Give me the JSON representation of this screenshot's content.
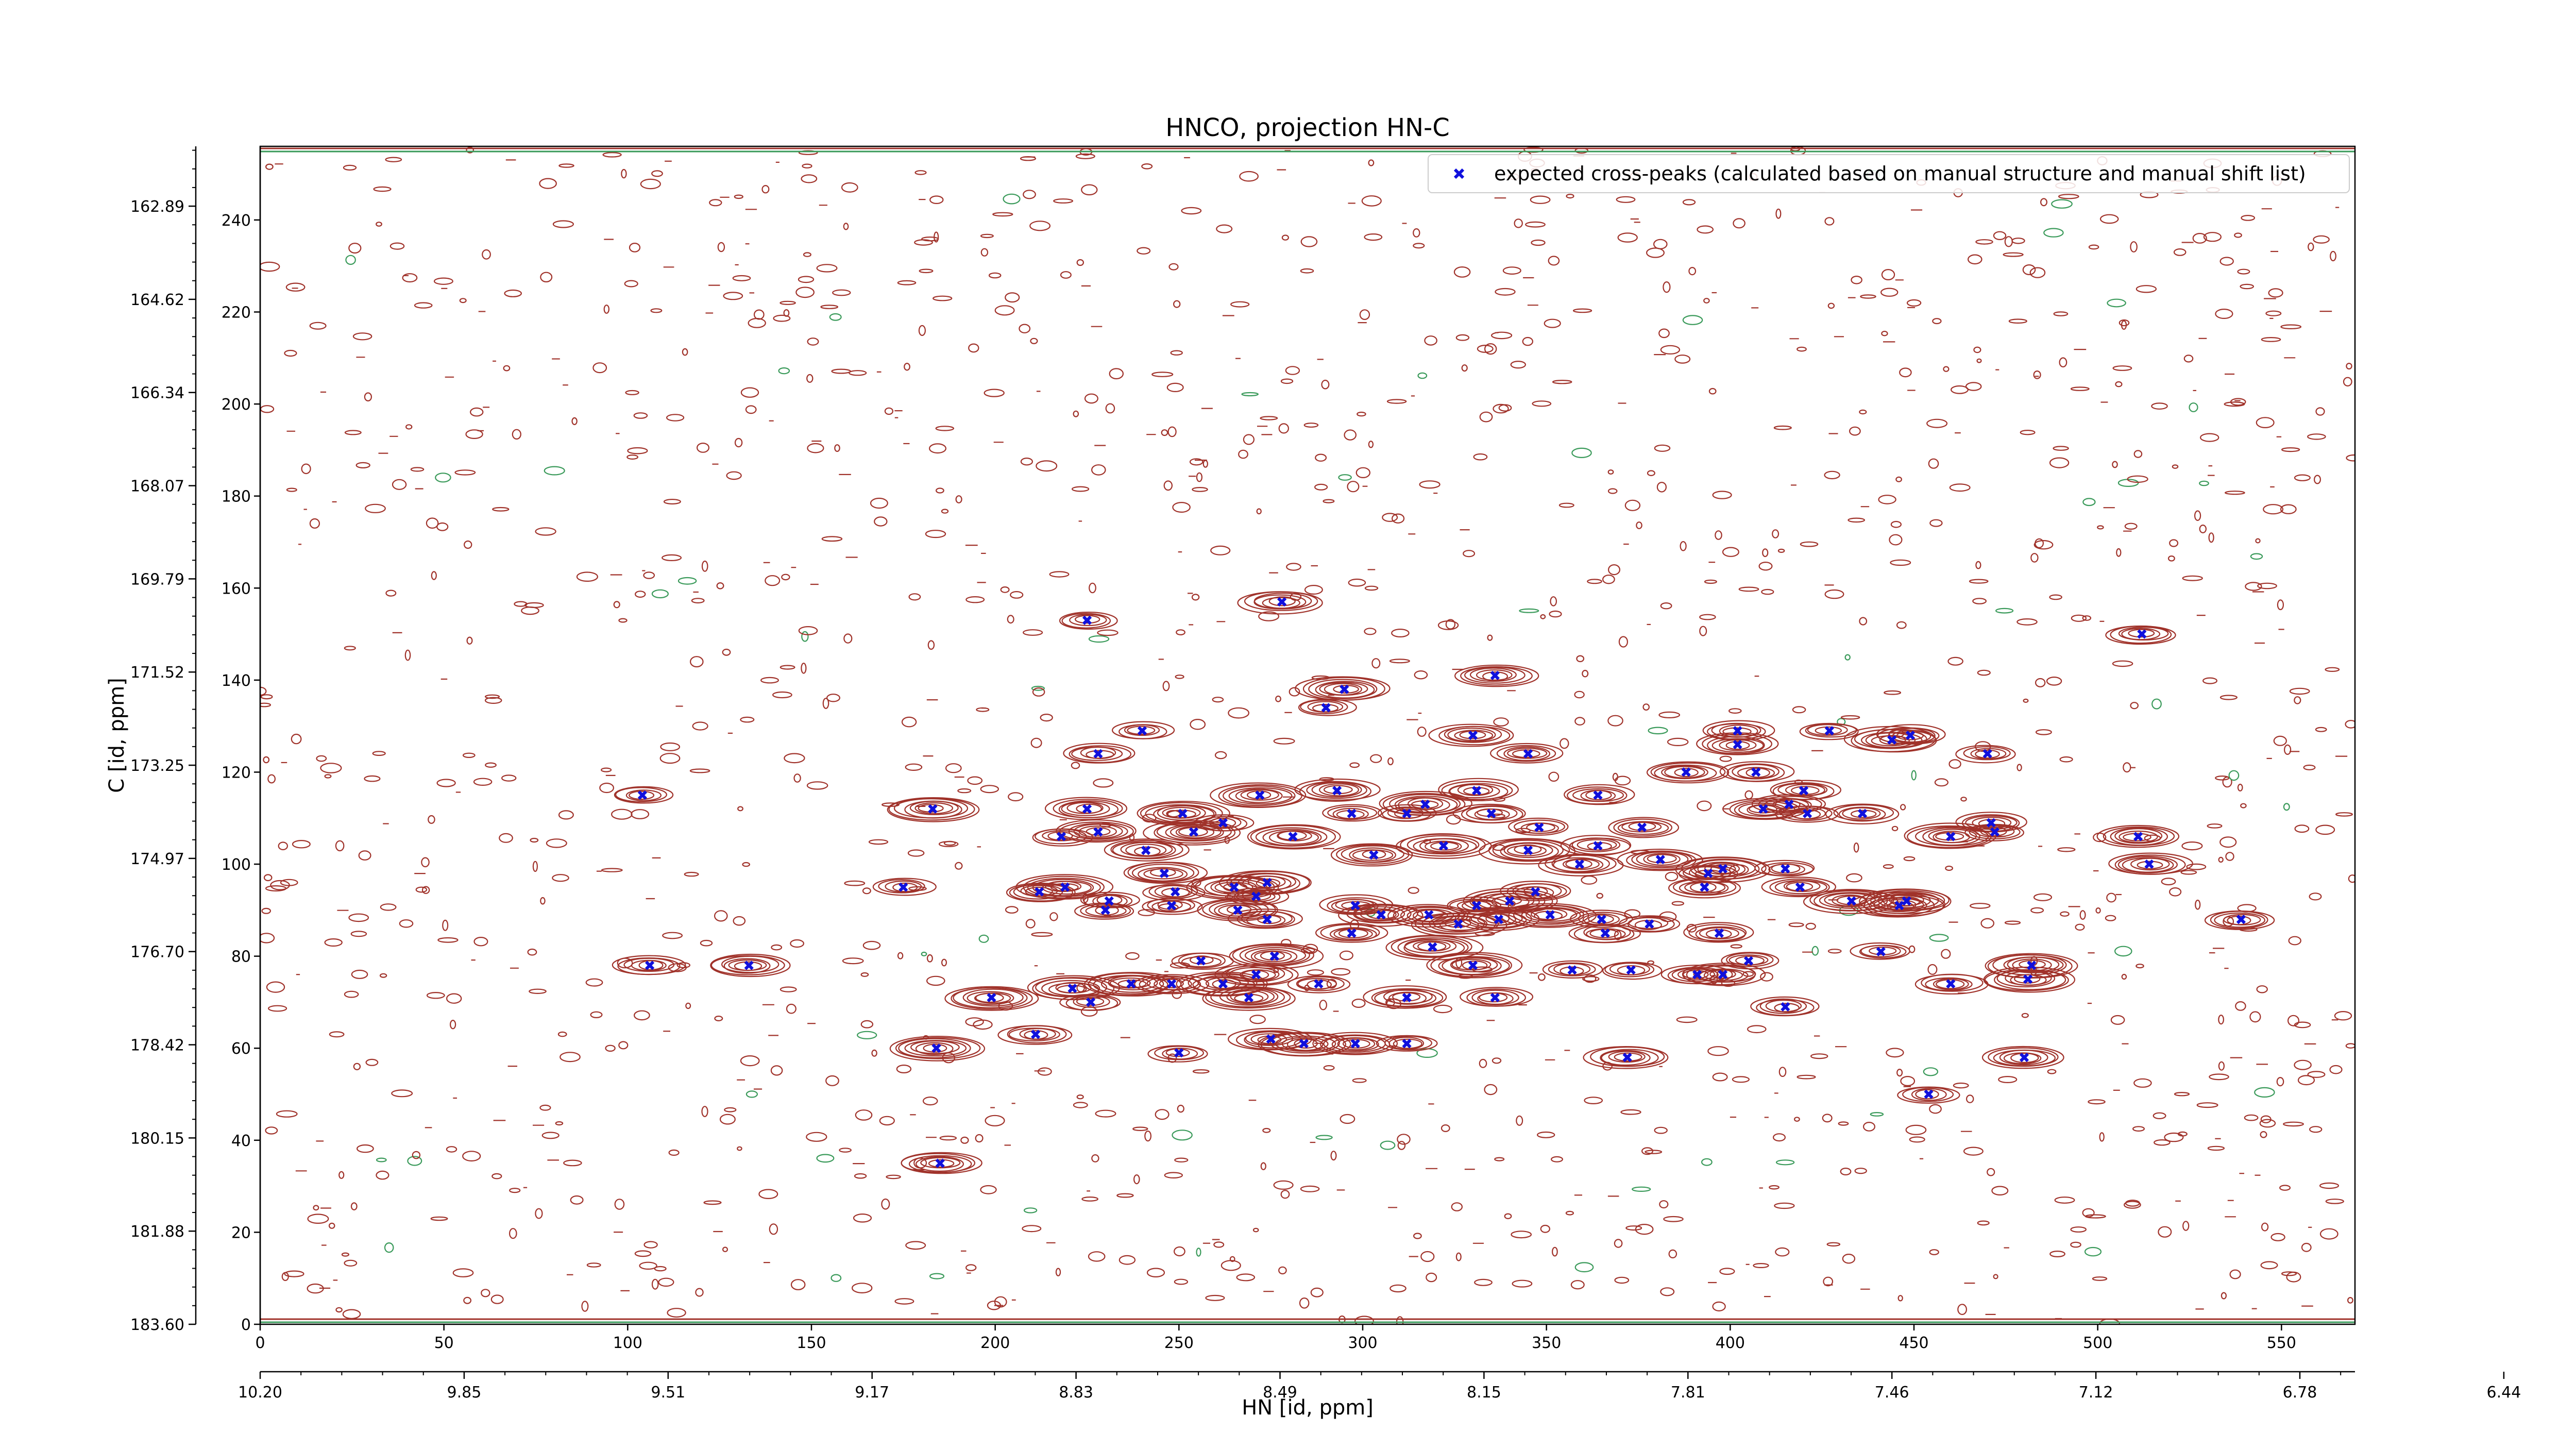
{
  "chart_data": {
    "type": "scatter",
    "title": "HNCO, projection HN-C",
    "xlabel": "HN [id, ppm]",
    "ylabel": "C [id, ppm]",
    "xlim": [
      0,
      570
    ],
    "ylim": [
      0,
      256
    ],
    "bottom_axis_ticks": [
      "0",
      "50",
      "100",
      "150",
      "200",
      "250",
      "300",
      "350",
      "400",
      "450",
      "500",
      "550"
    ],
    "bottom_axis_tick_values": [
      0,
      50,
      100,
      150,
      200,
      250,
      300,
      350,
      400,
      450,
      500,
      550
    ],
    "ppm_axis_ticks": [
      "10.20",
      "9.85",
      "9.51",
      "9.17",
      "8.83",
      "8.49",
      "8.15",
      "7.81",
      "7.46",
      "7.12",
      "6.78",
      "6.44"
    ],
    "left_axis_ticks": [
      "0",
      "20",
      "40",
      "60",
      "80",
      "100",
      "120",
      "140",
      "160",
      "180",
      "200",
      "220",
      "240"
    ],
    "left_axis_tick_values": [
      0,
      20,
      40,
      60,
      80,
      100,
      120,
      140,
      160,
      180,
      200,
      220,
      240
    ],
    "ppm_c_ticks": [
      "183.60",
      "181.88",
      "180.15",
      "178.42",
      "176.70",
      "174.97",
      "173.25",
      "171.52",
      "169.79",
      "168.07",
      "166.34",
      "164.62",
      "162.89"
    ],
    "grid": false,
    "legend_position": "top-right",
    "colors": {
      "contour_positive": "#a0322a",
      "contour_negative": "#3a9a5a",
      "marker": "#1010dd"
    },
    "series": [
      {
        "name": "expected cross-peaks (calculated based on manual structure and manual shift list)",
        "marker": "x",
        "points": [
          [
            225,
            153
          ],
          [
            278,
            157
          ],
          [
            336,
            141
          ],
          [
            295,
            138
          ],
          [
            290,
            134
          ],
          [
            512,
            150
          ],
          [
            240,
            129
          ],
          [
            330,
            128
          ],
          [
            402,
            129
          ],
          [
            427,
            129
          ],
          [
            444,
            127
          ],
          [
            449,
            128
          ],
          [
            228,
            124
          ],
          [
            345,
            124
          ],
          [
            402,
            126
          ],
          [
            470,
            124
          ],
          [
            104,
            115
          ],
          [
            183,
            112
          ],
          [
            225,
            112
          ],
          [
            251,
            111
          ],
          [
            272,
            115
          ],
          [
            293,
            116
          ],
          [
            317,
            113
          ],
          [
            331,
            116
          ],
          [
            364,
            115
          ],
          [
            388,
            120
          ],
          [
            407,
            120
          ],
          [
            420,
            116
          ],
          [
            218,
            106
          ],
          [
            228,
            107
          ],
          [
            262,
            109
          ],
          [
            297,
            111
          ],
          [
            312,
            111
          ],
          [
            335,
            111
          ],
          [
            348,
            108
          ],
          [
            376,
            108
          ],
          [
            409,
            112
          ],
          [
            416,
            113
          ],
          [
            421,
            111
          ],
          [
            436,
            111
          ],
          [
            460,
            106
          ],
          [
            471,
            109
          ],
          [
            472,
            107
          ],
          [
            511,
            106
          ],
          [
            241,
            103
          ],
          [
            254,
            107
          ],
          [
            281,
            106
          ],
          [
            303,
            102
          ],
          [
            322,
            104
          ],
          [
            345,
            103
          ],
          [
            359,
            100
          ],
          [
            364,
            104
          ],
          [
            381,
            101
          ],
          [
            394,
            98
          ],
          [
            398,
            99
          ],
          [
            415,
            99
          ],
          [
            514,
            100
          ],
          [
            175,
            95
          ],
          [
            212,
            94
          ],
          [
            219,
            95
          ],
          [
            231,
            92
          ],
          [
            246,
            98
          ],
          [
            249,
            94
          ],
          [
            265,
            95
          ],
          [
            271,
            93
          ],
          [
            274,
            96
          ],
          [
            298,
            91
          ],
          [
            340,
            92
          ],
          [
            347,
            94
          ],
          [
            393,
            95
          ],
          [
            419,
            95
          ],
          [
            448,
            92
          ],
          [
            230,
            90
          ],
          [
            248,
            91
          ],
          [
            266,
            90
          ],
          [
            274,
            88
          ],
          [
            305,
            89
          ],
          [
            318,
            89
          ],
          [
            326,
            87
          ],
          [
            331,
            91
          ],
          [
            337,
            88
          ],
          [
            351,
            89
          ],
          [
            365,
            88
          ],
          [
            378,
            87
          ],
          [
            397,
            85
          ],
          [
            433,
            92
          ],
          [
            446,
            91
          ],
          [
            539,
            88
          ],
          [
            106,
            78
          ],
          [
            133,
            78
          ],
          [
            256,
            79
          ],
          [
            276,
            80
          ],
          [
            297,
            85
          ],
          [
            319,
            82
          ],
          [
            330,
            78
          ],
          [
            357,
            77
          ],
          [
            366,
            85
          ],
          [
            373,
            77
          ],
          [
            391,
            76
          ],
          [
            398,
            76
          ],
          [
            405,
            79
          ],
          [
            482,
            78
          ],
          [
            441,
            81
          ],
          [
            199,
            71
          ],
          [
            211,
            63
          ],
          [
            221,
            73
          ],
          [
            226,
            70
          ],
          [
            237,
            74
          ],
          [
            248,
            74
          ],
          [
            262,
            74
          ],
          [
            269,
            71
          ],
          [
            271,
            76
          ],
          [
            288,
            74
          ],
          [
            312,
            71
          ],
          [
            336,
            71
          ],
          [
            415,
            69
          ],
          [
            460,
            74
          ],
          [
            481,
            75
          ],
          [
            184,
            60
          ],
          [
            250,
            59
          ],
          [
            275,
            62
          ],
          [
            284,
            61
          ],
          [
            298,
            61
          ],
          [
            312,
            61
          ],
          [
            372,
            58
          ],
          [
            454,
            50
          ],
          [
            480,
            58
          ],
          [
            185,
            35
          ]
        ]
      }
    ]
  }
}
